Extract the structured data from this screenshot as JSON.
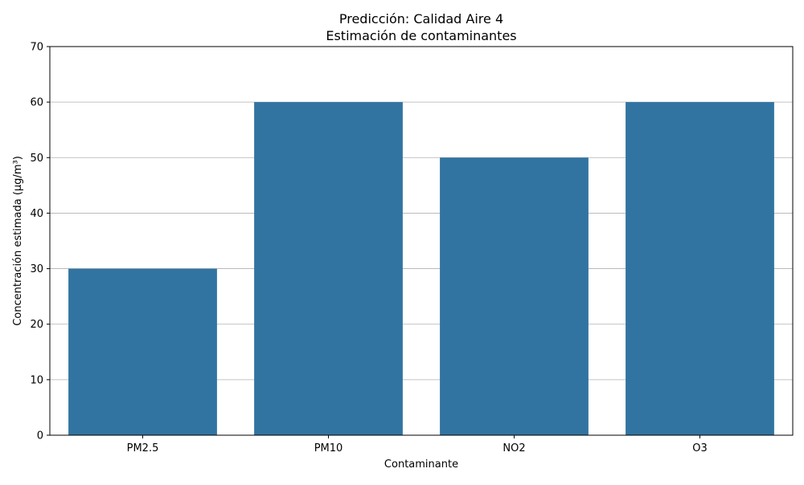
{
  "chart_data": {
    "type": "bar",
    "title": "Predicción: Calidad Aire 4",
    "subtitle": "Estimación de contaminantes",
    "xlabel": "Contaminante",
    "ylabel": "Concentración estimada (µg/m³)",
    "categories": [
      "PM2.5",
      "PM10",
      "NO2",
      "O3"
    ],
    "values": [
      30,
      60,
      50,
      60
    ],
    "ylim": [
      0,
      70
    ],
    "yticks": [
      0,
      10,
      20,
      30,
      40,
      50,
      60,
      70
    ],
    "grid": "y",
    "bar_color": "#3274a1",
    "grid_color": "#b0b0b0"
  }
}
